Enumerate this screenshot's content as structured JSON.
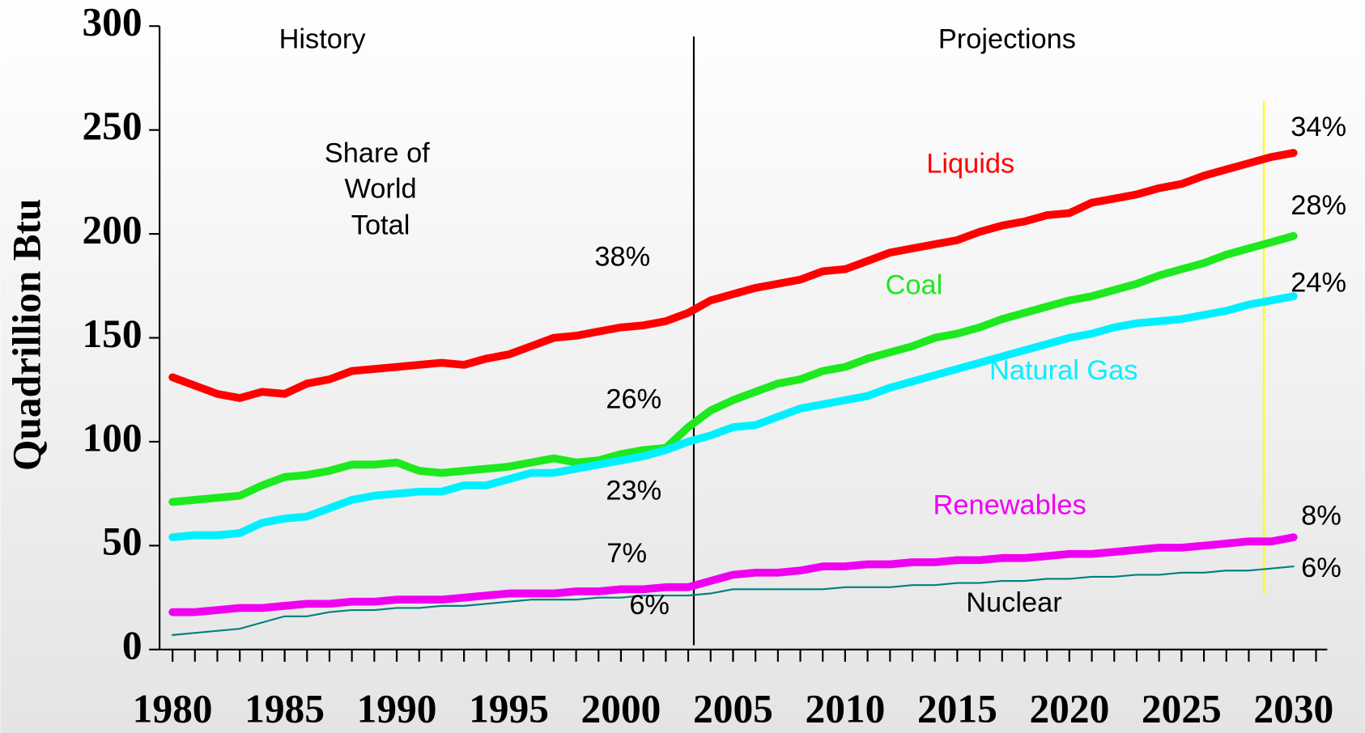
{
  "chart_data": {
    "type": "line",
    "y_label": "Quadrillion Btu",
    "x": [
      1980,
      1981,
      1982,
      1983,
      1984,
      1985,
      1986,
      1987,
      1988,
      1989,
      1990,
      1991,
      1992,
      1993,
      1994,
      1995,
      1996,
      1997,
      1998,
      1999,
      2000,
      2001,
      2002,
      2003,
      2004,
      2005,
      2006,
      2007,
      2008,
      2009,
      2010,
      2011,
      2012,
      2013,
      2014,
      2015,
      2016,
      2017,
      2018,
      2019,
      2020,
      2021,
      2022,
      2023,
      2024,
      2025,
      2026,
      2027,
      2028,
      2029,
      2030
    ],
    "series": [
      {
        "name": "Liquids",
        "color": "#ff0000",
        "values": [
          131,
          127,
          123,
          121,
          124,
          123,
          128,
          130,
          134,
          135,
          136,
          137,
          138,
          137,
          140,
          142,
          146,
          150,
          151,
          153,
          155,
          156,
          158,
          162,
          168,
          171,
          174,
          176,
          178,
          182,
          183,
          187,
          191,
          193,
          195,
          197,
          201,
          204,
          206,
          209,
          210,
          215,
          217,
          219,
          222,
          224,
          228,
          231,
          234,
          237,
          239
        ]
      },
      {
        "name": "Coal",
        "color": "#1ee81e",
        "values": [
          71,
          72,
          73,
          74,
          79,
          83,
          84,
          86,
          89,
          89,
          90,
          86,
          85,
          86,
          87,
          88,
          90,
          92,
          90,
          91,
          94,
          96,
          97,
          107,
          115,
          120,
          124,
          128,
          130,
          134,
          136,
          140,
          143,
          146,
          150,
          152,
          155,
          159,
          162,
          165,
          168,
          170,
          173,
          176,
          180,
          183,
          186,
          190,
          193,
          196,
          199
        ]
      },
      {
        "name": "Natural Gas",
        "color": "#00f0ff",
        "values": [
          54,
          55,
          55,
          56,
          61,
          63,
          64,
          68,
          72,
          74,
          75,
          76,
          76,
          79,
          79,
          82,
          85,
          85,
          87,
          89,
          91,
          93,
          96,
          100,
          103,
          107,
          108,
          112,
          116,
          118,
          120,
          122,
          126,
          129,
          132,
          135,
          138,
          141,
          144,
          147,
          150,
          152,
          155,
          157,
          158,
          159,
          161,
          163,
          166,
          168,
          170
        ]
      },
      {
        "name": "Renewables",
        "color": "#f000f0",
        "values": [
          18,
          18,
          19,
          20,
          20,
          21,
          22,
          22,
          23,
          23,
          24,
          24,
          24,
          25,
          26,
          27,
          27,
          27,
          28,
          28,
          29,
          29,
          30,
          30,
          33,
          36,
          37,
          37,
          38,
          40,
          40,
          41,
          41,
          42,
          42,
          43,
          43,
          44,
          44,
          45,
          46,
          46,
          47,
          48,
          49,
          49,
          50,
          51,
          52,
          52,
          54
        ]
      },
      {
        "name": "Nuclear",
        "color": "#008080",
        "values": [
          7,
          8,
          9,
          10,
          13,
          16,
          16,
          18,
          19,
          19,
          20,
          20,
          21,
          21,
          22,
          23,
          24,
          24,
          24,
          25,
          25,
          26,
          26,
          26,
          27,
          29,
          29,
          29,
          29,
          29,
          30,
          30,
          30,
          31,
          31,
          32,
          32,
          33,
          33,
          34,
          34,
          35,
          35,
          36,
          36,
          37,
          37,
          38,
          38,
          39,
          40
        ]
      }
    ],
    "xlim": [
      1979.5,
      2031.5
    ],
    "xticks": [
      1980,
      1985,
      1990,
      1995,
      2000,
      2005,
      2010,
      2015,
      2020,
      2025,
      2030
    ],
    "ylim": [
      0,
      300
    ],
    "yticks": [
      0,
      50,
      100,
      150,
      200,
      250,
      300
    ],
    "annotations": [
      "History",
      "Projections",
      "Share of",
      "World",
      "Total",
      "38%",
      "26%",
      "23%",
      "7%",
      "6%",
      "34%",
      "28%",
      "24%",
      "8%",
      "6%"
    ]
  }
}
